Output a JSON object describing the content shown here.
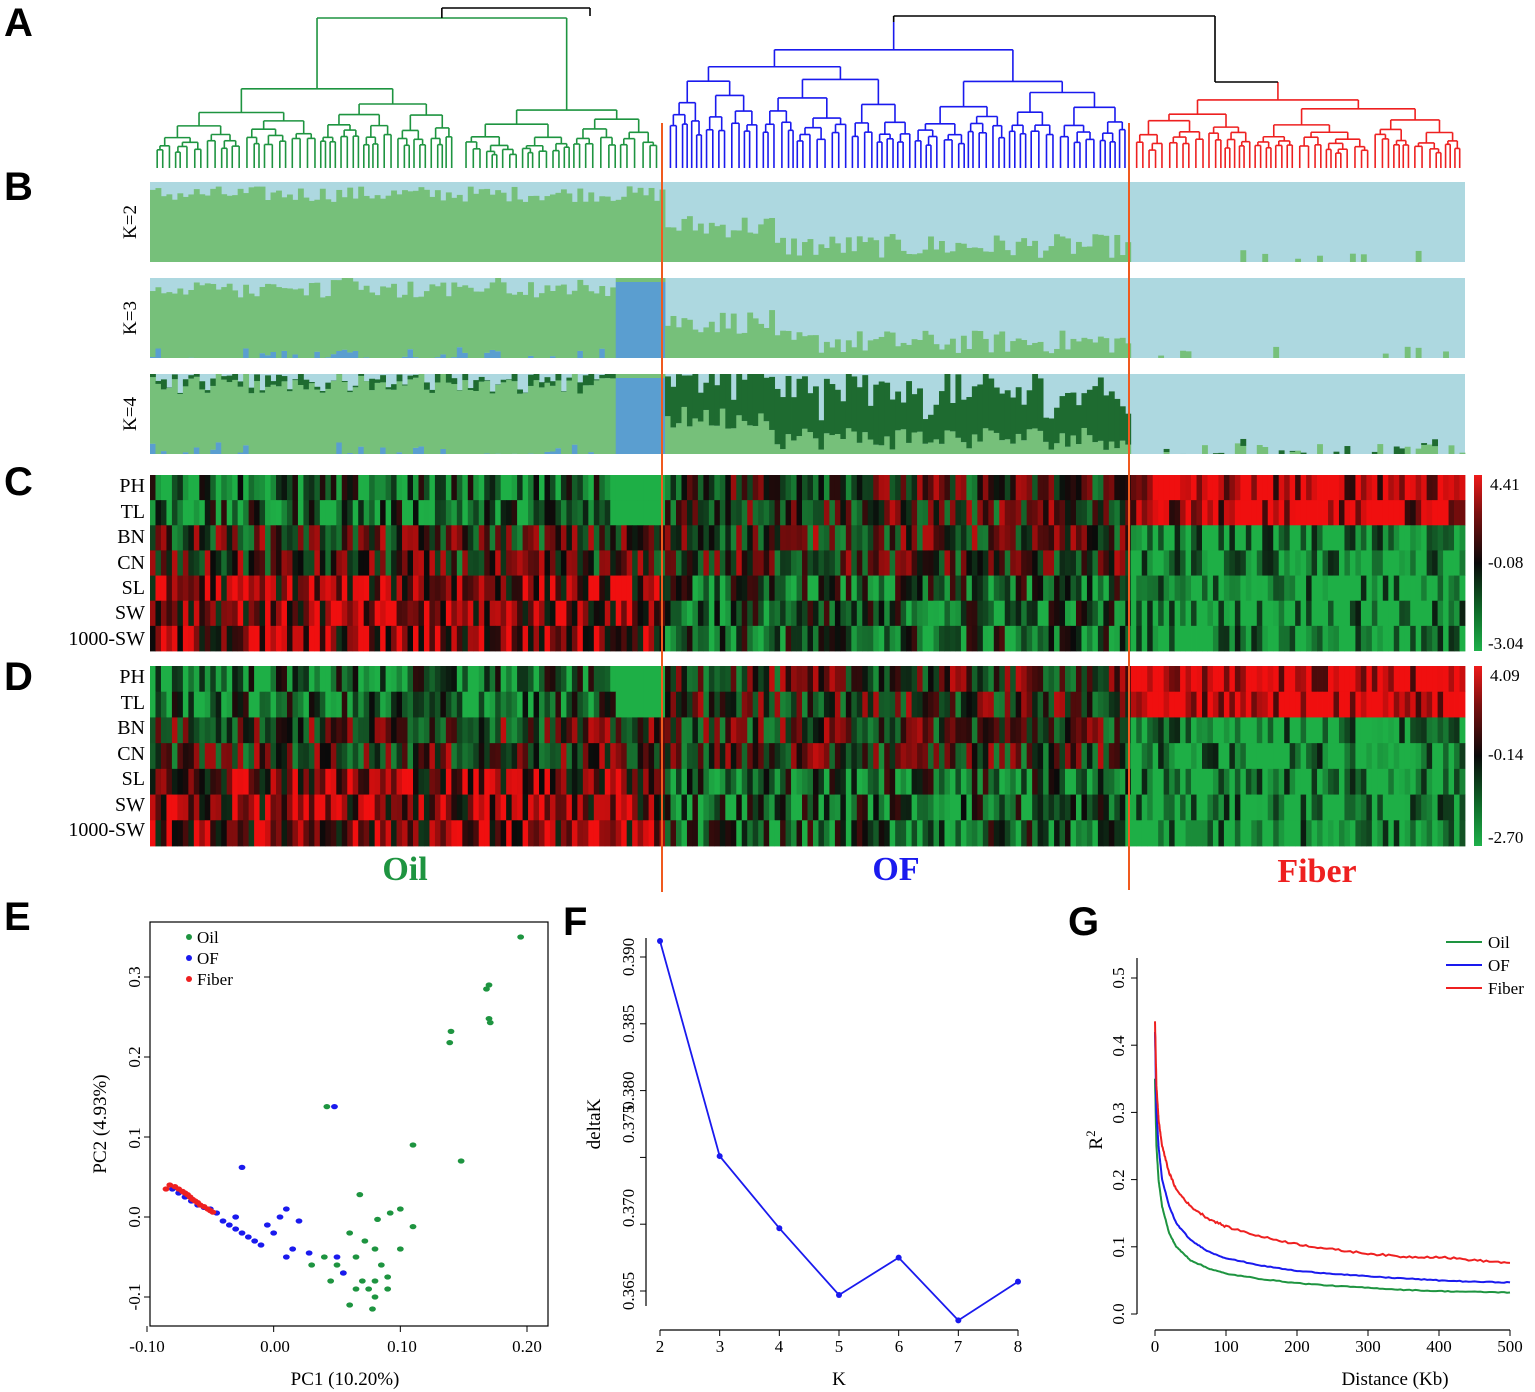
{
  "panel_labels": [
    "A",
    "B",
    "C",
    "D",
    "E",
    "F",
    "G"
  ],
  "colors": {
    "oil": "#1e9440",
    "of": "#1a1aee",
    "fiber": "#ee2020",
    "light_blue": "#add8e0",
    "light_green": "#76c07a",
    "mid_blue": "#5a9ed0",
    "dark_green": "#1e6b30",
    "divider": "#f05a1e"
  },
  "groups": [
    {
      "name": "Oil",
      "color": "#1e9440"
    },
    {
      "name": "OF",
      "color": "#1a1aee"
    },
    {
      "name": "Fiber",
      "color": "#ee2020"
    }
  ],
  "structure_labels": [
    "K=2",
    "K=3",
    "K=4"
  ],
  "trait_labels": [
    "PH",
    "TL",
    "BN",
    "CN",
    "SL",
    "SW",
    "1000-SW"
  ],
  "heatmap_c_scale": [
    "4.41",
    "-0.08",
    "-3.04"
  ],
  "heatmap_d_scale": [
    "4.09",
    "-0.14",
    "-2.70"
  ],
  "chart_data": [
    {
      "panel": "E",
      "type": "scatter",
      "xlabel": "PC1 (10.20%)",
      "ylabel": "PC2 (4.93%)",
      "xlim": [
        -0.1,
        0.21
      ],
      "ylim": [
        -0.125,
        0.36
      ],
      "xticks": [
        "-0.10",
        "0.00",
        "0.10",
        "0.20"
      ],
      "yticks": [
        "-0.1",
        "0.0",
        "0.1",
        "0.2",
        "0.3"
      ],
      "legend": [
        "Oil",
        "OF",
        "Fiber"
      ],
      "series": [
        {
          "name": "Oil",
          "points": [
            [
              0.195,
              0.35
            ],
            [
              0.17,
              0.29
            ],
            [
              0.168,
              0.285
            ],
            [
              0.17,
              0.248
            ],
            [
              0.171,
              0.243
            ],
            [
              0.14,
              0.232
            ],
            [
              0.139,
              0.218
            ],
            [
              0.11,
              0.09
            ],
            [
              0.148,
              0.07
            ],
            [
              0.042,
              0.138
            ],
            [
              0.068,
              0.028
            ],
            [
              0.082,
              -0.003
            ],
            [
              0.1,
              0.01
            ],
            [
              0.092,
              0.005
            ],
            [
              0.11,
              -0.012
            ],
            [
              0.06,
              -0.02
            ],
            [
              0.072,
              -0.03
            ],
            [
              0.08,
              -0.04
            ],
            [
              0.065,
              -0.05
            ],
            [
              0.05,
              -0.06
            ],
            [
              0.085,
              -0.06
            ],
            [
              0.09,
              -0.075
            ],
            [
              0.07,
              -0.08
            ],
            [
              0.075,
              -0.09
            ],
            [
              0.08,
              -0.1
            ],
            [
              0.06,
              -0.11
            ],
            [
              0.04,
              -0.05
            ],
            [
              0.03,
              -0.06
            ],
            [
              0.1,
              -0.04
            ],
            [
              0.055,
              -0.07
            ],
            [
              0.078,
              -0.115
            ],
            [
              0.065,
              -0.09
            ],
            [
              0.09,
              -0.09
            ],
            [
              0.045,
              -0.08
            ],
            [
              0.08,
              -0.08
            ]
          ]
        },
        {
          "name": "OF",
          "points": [
            [
              0.048,
              0.138
            ],
            [
              -0.025,
              0.062
            ],
            [
              -0.08,
              0.035
            ],
            [
              -0.075,
              0.03
            ],
            [
              -0.07,
              0.025
            ],
            [
              -0.065,
              0.02
            ],
            [
              -0.06,
              0.015
            ],
            [
              -0.055,
              0.012
            ],
            [
              -0.05,
              0.01
            ],
            [
              -0.045,
              0.005
            ],
            [
              -0.04,
              -0.005
            ],
            [
              -0.035,
              -0.01
            ],
            [
              -0.03,
              -0.015
            ],
            [
              -0.025,
              -0.02
            ],
            [
              -0.02,
              -0.025
            ],
            [
              -0.015,
              -0.03
            ],
            [
              -0.01,
              -0.035
            ],
            [
              0.0,
              -0.02
            ],
            [
              0.01,
              0.01
            ],
            [
              0.005,
              0.0
            ],
            [
              -0.005,
              -0.01
            ],
            [
              0.02,
              -0.005
            ],
            [
              0.015,
              -0.04
            ],
            [
              0.01,
              -0.05
            ],
            [
              0.05,
              -0.05
            ],
            [
              0.055,
              -0.07
            ],
            [
              -0.03,
              0.0
            ],
            [
              0.028,
              -0.045
            ]
          ]
        },
        {
          "name": "Fiber",
          "points": [
            [
              -0.085,
              0.035
            ],
            [
              -0.082,
              0.04
            ],
            [
              -0.078,
              0.038
            ],
            [
              -0.075,
              0.035
            ],
            [
              -0.072,
              0.032
            ],
            [
              -0.07,
              0.03
            ],
            [
              -0.068,
              0.028
            ],
            [
              -0.066,
              0.025
            ],
            [
              -0.064,
              0.022
            ],
            [
              -0.062,
              0.02
            ],
            [
              -0.06,
              0.018
            ],
            [
              -0.058,
              0.015
            ],
            [
              -0.055,
              0.013
            ],
            [
              -0.052,
              0.01
            ],
            [
              -0.05,
              0.008
            ],
            [
              -0.048,
              0.006
            ]
          ]
        }
      ]
    },
    {
      "panel": "F",
      "type": "line",
      "xlabel": "K",
      "ylabel": "deltaK",
      "xlim": [
        1.85,
        8.15
      ],
      "ylim": [
        0.3615,
        0.3925
      ],
      "xticks": [
        "2",
        "3",
        "4",
        "5",
        "6",
        "7",
        "8"
      ],
      "yticks": [
        "0.365",
        "0.370",
        "0.375",
        "0.380",
        "0.385",
        "0.390"
      ],
      "x": [
        2,
        3,
        4,
        5,
        6,
        7,
        8
      ],
      "values": [
        0.3912,
        0.3751,
        0.3697,
        0.3647,
        0.3675,
        0.3628,
        0.3657
      ]
    },
    {
      "panel": "G",
      "type": "line",
      "xlabel": "Distance (Kb)",
      "ylabel": "R2",
      "xlim": [
        -12,
        520
      ],
      "ylim": [
        0.0,
        0.53
      ],
      "xticks": [
        "0",
        "100",
        "200",
        "300",
        "400",
        "500"
      ],
      "yticks": [
        "0.0",
        "0.1",
        "0.2",
        "0.3",
        "0.4",
        "0.5"
      ],
      "legend": [
        "Oil",
        "OF",
        "Fiber"
      ],
      "series": [
        {
          "name": "Oil",
          "x": [
            0,
            2,
            5,
            10,
            20,
            30,
            50,
            75,
            100,
            150,
            200,
            250,
            300,
            350,
            400,
            450,
            500
          ],
          "values": [
            0.35,
            0.25,
            0.2,
            0.16,
            0.12,
            0.1,
            0.08,
            0.068,
            0.06,
            0.052,
            0.046,
            0.042,
            0.039,
            0.036,
            0.034,
            0.033,
            0.032
          ]
        },
        {
          "name": "OF",
          "x": [
            0,
            2,
            5,
            10,
            20,
            30,
            50,
            75,
            100,
            150,
            200,
            250,
            300,
            350,
            400,
            450,
            500
          ],
          "values": [
            0.42,
            0.3,
            0.25,
            0.2,
            0.16,
            0.135,
            0.11,
            0.093,
            0.083,
            0.072,
            0.064,
            0.06,
            0.056,
            0.053,
            0.05,
            0.048,
            0.047
          ]
        },
        {
          "name": "Fiber",
          "x": [
            0,
            2,
            5,
            10,
            20,
            30,
            50,
            75,
            100,
            150,
            200,
            250,
            300,
            350,
            400,
            450,
            500
          ],
          "values": [
            0.435,
            0.34,
            0.29,
            0.25,
            0.21,
            0.185,
            0.16,
            0.142,
            0.13,
            0.115,
            0.104,
            0.096,
            0.09,
            0.085,
            0.085,
            0.08,
            0.076
          ]
        }
      ]
    }
  ]
}
